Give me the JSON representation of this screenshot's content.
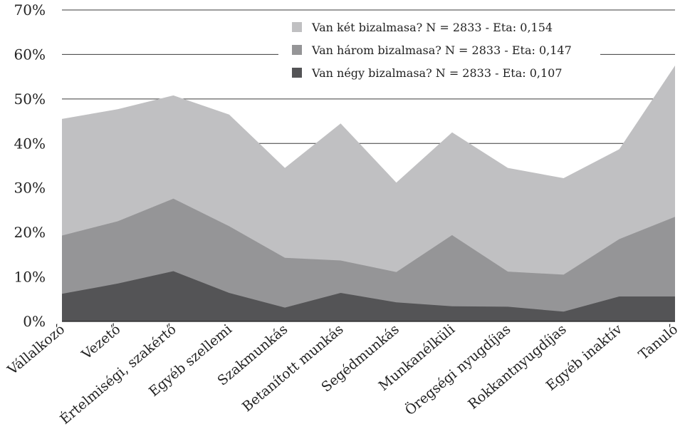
{
  "chart_data": {
    "type": "area",
    "stacked": false,
    "title": "",
    "xlabel": "",
    "ylabel": "",
    "ylim": [
      0,
      70
    ],
    "y_ticks": [
      "0%",
      "10%",
      "20%",
      "30%",
      "40%",
      "50%",
      "60%",
      "70%"
    ],
    "grid": true,
    "legend_position": "top-right",
    "categories": [
      "Vállalkozó",
      "Vezető",
      "Értelmiségi, szakértő",
      "Egyéb szellemi",
      "Szakmunkás",
      "Betanított munkás",
      "Segédmunkás",
      "Munkanélküli",
      "Öregségi nyugdíjas",
      "Rokkantnyugdíjas",
      "Egyéb inaktív",
      "Tanuló"
    ],
    "series": [
      {
        "name": "Van két bizalmasa? N = 2833 - Eta: 0,154",
        "color": "#c0c0c2",
        "values": [
          45.5,
          47.7,
          50.8,
          46.5,
          34.5,
          44.5,
          31.2,
          42.5,
          34.5,
          32.2,
          38.7,
          57.5
        ]
      },
      {
        "name": "Van három bizalmasa? N = 2833 - Eta: 0,147",
        "color": "#959597",
        "values": [
          19.3,
          22.5,
          27.6,
          21.4,
          14.3,
          13.7,
          11.1,
          19.4,
          11.2,
          10.5,
          18.5,
          23.5
        ]
      },
      {
        "name": "Van négy bizalmasa? N = 2833 - Eta: 0,107",
        "color": "#545456",
        "values": [
          6.2,
          8.5,
          11.3,
          6.4,
          3.1,
          6.4,
          4.3,
          3.4,
          3.3,
          2.2,
          5.6,
          5.6
        ]
      }
    ]
  }
}
